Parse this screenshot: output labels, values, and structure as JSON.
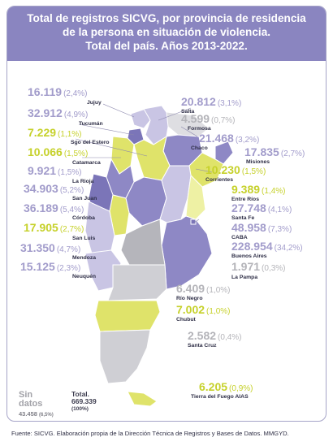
{
  "title": {
    "line1": "Total de registros SICVG, por provincia de residencia",
    "line2": "de la persona en situación de violencia.",
    "line3": "Total del país.  Años 2013-2022."
  },
  "colors": {
    "header": "#8a85c0",
    "violet": "#a29ccb",
    "yellow": "#c6d12b",
    "gray": "#b4b4b9",
    "map_shades": [
      "#c9c5e4",
      "#8e88c5",
      "#7b75b8",
      "#dfe36a",
      "#eef1a4",
      "#cfcfd4",
      "#b5b5bb",
      "#dedee2"
    ]
  },
  "provinces": [
    {
      "name": "Jujuy",
      "value": "16.119",
      "pct": "(2,4%)"
    },
    {
      "name": "Tucumán",
      "value": "32.912",
      "pct": "(4,9%)"
    },
    {
      "name": "Sgo del Estero",
      "value": "7.229",
      "pct": "(1,1%)"
    },
    {
      "name": "Catamarca",
      "value": "10.066",
      "pct": "(1,5%)"
    },
    {
      "name": "La Rioja",
      "value": "9.921",
      "pct": "(1,5%)"
    },
    {
      "name": "San Juan",
      "value": "34.903",
      "pct": "(5,2%)"
    },
    {
      "name": "Córdoba",
      "value": "36.189",
      "pct": "(5,4%)"
    },
    {
      "name": "San Luis",
      "value": "17.905",
      "pct": "(2,7%)"
    },
    {
      "name": "Mendoza",
      "value": "31.350",
      "pct": "(4,7%)"
    },
    {
      "name": "Neuquén",
      "value": "15.125",
      "pct": "(2,3%)"
    },
    {
      "name": "Salta",
      "value": "20.812",
      "pct": "(3,1%)"
    },
    {
      "name": "Formosa",
      "value": "4.599",
      "pct": "(0,7%)"
    },
    {
      "name": "Chaco",
      "value": "21.468",
      "pct": "(3,2%)"
    },
    {
      "name": "Misiones",
      "value": "17.835",
      "pct": "(2,7%)"
    },
    {
      "name": "Corrientes",
      "value": "10.230",
      "pct": "(1,5%)"
    },
    {
      "name": "Entre Ríos",
      "value": "9.389",
      "pct": "(1,4%)"
    },
    {
      "name": "Santa Fe",
      "value": "27.748",
      "pct": "(4,1%)"
    },
    {
      "name": "CABA",
      "value": "48.958",
      "pct": "(7,3%)"
    },
    {
      "name": "Buenos Aires",
      "value": "228.954",
      "pct": "(34,2%)"
    },
    {
      "name": "La Pampa",
      "value": "1.971",
      "pct": "(0,3%)"
    },
    {
      "name": "Río Negro",
      "value": "6.409",
      "pct": "(1,0%)"
    },
    {
      "name": "Chubut",
      "value": "7.002",
      "pct": "(1,0%)"
    },
    {
      "name": "Santa Cruz",
      "value": "2.582",
      "pct": "(0,4%)"
    },
    {
      "name": "Tierra del Fuego AIAS",
      "value": "6.205",
      "pct": "(0,9%)"
    }
  ],
  "sin_datos": {
    "label_line1": "Sin",
    "label_line2": "datos",
    "value": "43.458",
    "pct": "(6,5%)"
  },
  "total": {
    "label": "Total.",
    "value": "669.339",
    "pct": "(100%)"
  },
  "source": "Fuente: SICVG. Elaboración propia de la Dirección Técnica de Registros y Bases de Datos. MMGYD."
}
